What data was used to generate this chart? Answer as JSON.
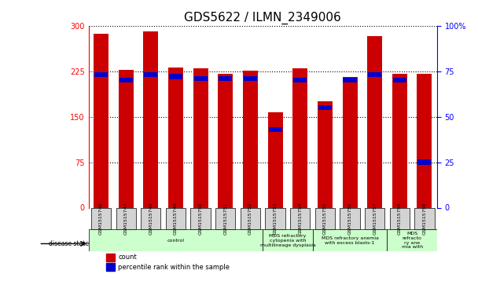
{
  "title": "GDS5622 / ILMN_2349006",
  "samples": [
    "GSM1515746",
    "GSM1515747",
    "GSM1515748",
    "GSM1515749",
    "GSM1515750",
    "GSM1515751",
    "GSM1515752",
    "GSM1515753",
    "GSM1515754",
    "GSM1515755",
    "GSM1515756",
    "GSM1515757",
    "GSM1515758",
    "GSM1515759"
  ],
  "counts": [
    287,
    227,
    291,
    231,
    230,
    220,
    226,
    157,
    229,
    175,
    215,
    282,
    221,
    220
  ],
  "percentiles": [
    73,
    70,
    73,
    72,
    71,
    71,
    71,
    43,
    70,
    55,
    70,
    73,
    70,
    25
  ],
  "ylim_left": [
    0,
    300
  ],
  "ylim_right": [
    0,
    100
  ],
  "yticks_left": [
    0,
    75,
    150,
    225,
    300
  ],
  "yticks_right": [
    0,
    25,
    50,
    75,
    100
  ],
  "bar_color": "#cc0000",
  "percentile_color": "#0000cc",
  "grid_color": "#000000",
  "background_color": "#ffffff",
  "bar_width": 0.6,
  "disease_groups": [
    {
      "label": "control",
      "start": 0,
      "end": 7,
      "color": "#ccffcc"
    },
    {
      "label": "MDS refractory\ncytopenia with\nmultilineage dysplasia",
      "start": 7,
      "end": 9,
      "color": "#ccffcc"
    },
    {
      "label": "MDS refractory anemia\nwith excess blasts-1",
      "start": 9,
      "end": 12,
      "color": "#ccffcc"
    },
    {
      "label": "MDS\nrefracto\nry ane\nmia with",
      "start": 12,
      "end": 14,
      "color": "#ccffcc"
    }
  ],
  "legend_count_color": "#cc0000",
  "legend_percentile_color": "#0000cc",
  "title_fontsize": 11,
  "axis_fontsize": 8,
  "tick_fontsize": 7
}
